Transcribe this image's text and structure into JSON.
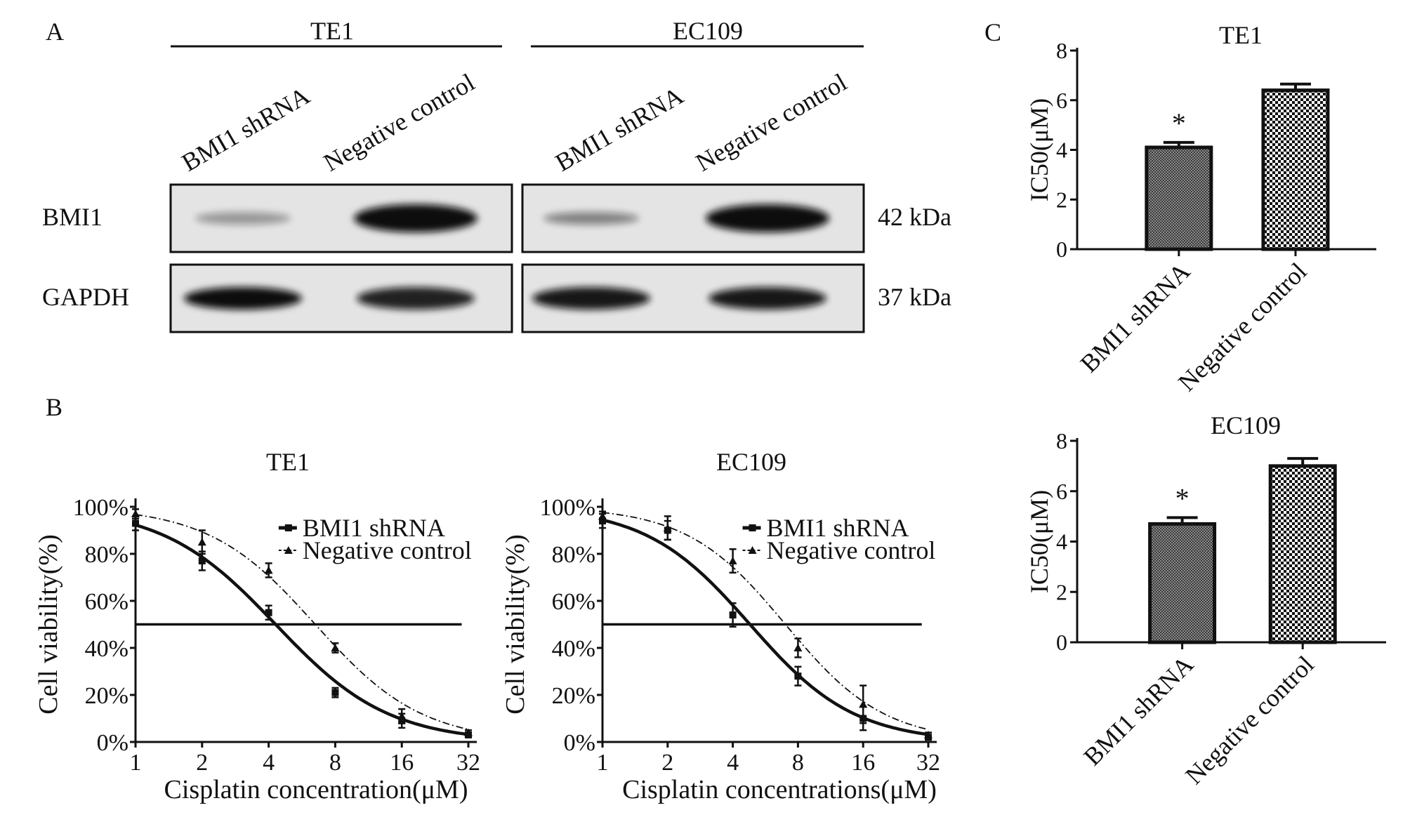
{
  "panels": {
    "A": {
      "letter": "A",
      "groups": [
        {
          "title": "TE1",
          "lanes": [
            "BMI1 shRNA",
            "Negative control"
          ]
        },
        {
          "title": "EC109",
          "lanes": [
            "BMI1 shRNA",
            "Negative control"
          ]
        }
      ],
      "rows": [
        {
          "label": "BMI1",
          "size": "42 kDa",
          "band_intensity": [
            0.35,
            1.0,
            0.45,
            1.0
          ]
        },
        {
          "label": "GAPDH",
          "size": "37 kDa",
          "band_intensity": [
            1.0,
            0.9,
            0.95,
            0.95
          ]
        }
      ]
    },
    "B": {
      "letter": "B"
    },
    "C": {
      "letter": "C"
    }
  },
  "colors": {
    "ink": "#111111",
    "band": "#0c0c0c",
    "blot_bg": "#e4e4e4"
  },
  "chart_data": [
    {
      "type": "line",
      "title": "TE1",
      "xlabel": "Cisplatin concentration(μM)",
      "ylabel": "Cell viability(%)",
      "x_scale": "log2",
      "x": [
        1,
        2,
        4,
        8,
        16,
        32
      ],
      "x_ticks": [
        "1",
        "2",
        "4",
        "8",
        "16",
        "32"
      ],
      "y_ticks": [
        "0%",
        "20%",
        "40%",
        "60%",
        "80%",
        "100%"
      ],
      "ylim": [
        0,
        100
      ],
      "reference_line_y": 50,
      "legend_position": "top-right",
      "series": [
        {
          "name": "BMI1 shRNA",
          "style": "solid",
          "marker": "square",
          "values": [
            93,
            77,
            55,
            21,
            9,
            3
          ],
          "errors": [
            3,
            4,
            3,
            2,
            3,
            1
          ],
          "ic50": 4.3,
          "hill": 1.7
        },
        {
          "name": "Negative control",
          "style": "dashdot",
          "marker": "triangle",
          "values": [
            97,
            85,
            73,
            40,
            11,
            4
          ],
          "errors": [
            2,
            5,
            3,
            2,
            3,
            1
          ],
          "ic50": 6.5,
          "hill": 1.8
        }
      ]
    },
    {
      "type": "line",
      "title": "EC109",
      "xlabel": "Cisplatin concentrations(μM)",
      "ylabel": "Cell viability(%)",
      "x_scale": "log2",
      "x": [
        1,
        2,
        4,
        8,
        16,
        32
      ],
      "x_ticks": [
        "1",
        "2",
        "4",
        "8",
        "16",
        "32"
      ],
      "y_ticks": [
        "0%",
        "20%",
        "40%",
        "60%",
        "80%",
        "100%"
      ],
      "ylim": [
        0,
        100
      ],
      "reference_line_y": 50,
      "legend_position": "top-right",
      "series": [
        {
          "name": "BMI1 shRNA",
          "style": "solid",
          "marker": "square",
          "values": [
            94,
            90,
            54,
            28,
            10,
            2
          ],
          "errors": [
            3,
            4,
            5,
            4,
            5,
            1
          ],
          "ic50": 4.8,
          "hill": 1.8
        },
        {
          "name": "Negative control",
          "style": "dashdot",
          "marker": "triangle",
          "values": [
            96,
            91,
            77,
            40,
            16,
            3
          ],
          "errors": [
            2,
            5,
            5,
            4,
            8,
            1
          ],
          "ic50": 7.0,
          "hill": 1.9
        }
      ]
    },
    {
      "type": "bar",
      "title": "TE1",
      "ylabel": "IC50(μM)",
      "categories": [
        "BMI1 shRNA",
        "Negative control"
      ],
      "values": [
        4.1,
        6.4
      ],
      "errors": [
        0.2,
        0.25
      ],
      "significance": [
        "*",
        ""
      ],
      "ylim": [
        0,
        8
      ],
      "y_ticks": [
        "0",
        "2",
        "4",
        "6",
        "8"
      ]
    },
    {
      "type": "bar",
      "title": "EC109",
      "ylabel": "IC50(μM)",
      "categories": [
        "BMI1 shRNA",
        "Negative control"
      ],
      "values": [
        4.7,
        7.0
      ],
      "errors": [
        0.25,
        0.3
      ],
      "significance": [
        "*",
        ""
      ],
      "ylim": [
        0,
        8
      ],
      "y_ticks": [
        "0",
        "2",
        "4",
        "6",
        "8"
      ]
    }
  ]
}
